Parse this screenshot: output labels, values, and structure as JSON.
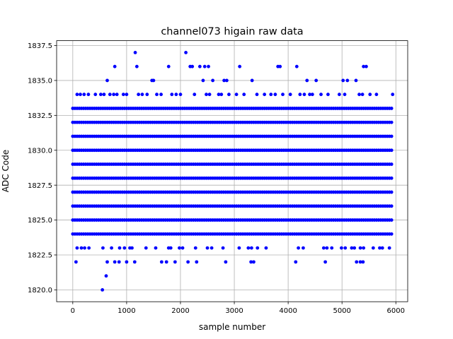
{
  "chart_data": {
    "type": "scatter",
    "title": "channel073 higain raw data",
    "xlabel": "sample number",
    "ylabel": "ADC Code",
    "xlim": [
      -300,
      6220
    ],
    "ylim": [
      1819.15,
      1837.85
    ],
    "xticks": [
      0,
      1000,
      2000,
      3000,
      4000,
      5000,
      6000
    ],
    "xtick_labels": [
      "0",
      "1000",
      "2000",
      "3000",
      "4000",
      "5000",
      "6000"
    ],
    "yticks": [
      1820.0,
      1822.5,
      1825.0,
      1827.5,
      1830.0,
      1832.5,
      1835.0,
      1837.5
    ],
    "ytick_labels": [
      "1820.0",
      "1822.5",
      "1825.0",
      "1827.5",
      "1830.0",
      "1832.5",
      "1835.0",
      "1837.5"
    ],
    "grid": true,
    "marker_color": "#0000ff",
    "series": [
      {
        "dense_levels": [
          1824,
          1825,
          1826,
          1827,
          1828,
          1829,
          1830,
          1831,
          1832,
          1833
        ],
        "dense_x_range": [
          0,
          5940
        ],
        "dense_step": 40,
        "sparse_points": [
          [
            1160,
            1837
          ],
          [
            2100,
            1837
          ],
          [
            780,
            1836
          ],
          [
            1190,
            1836
          ],
          [
            1780,
            1836
          ],
          [
            2180,
            1836
          ],
          [
            2220,
            1836
          ],
          [
            2360,
            1836
          ],
          [
            2450,
            1836
          ],
          [
            2520,
            1836
          ],
          [
            3100,
            1836
          ],
          [
            3810,
            1836
          ],
          [
            3850,
            1836
          ],
          [
            4160,
            1836
          ],
          [
            5400,
            1836
          ],
          [
            5450,
            1836
          ],
          [
            640,
            1835
          ],
          [
            1470,
            1835
          ],
          [
            1500,
            1835
          ],
          [
            2420,
            1835
          ],
          [
            2600,
            1835
          ],
          [
            2810,
            1835
          ],
          [
            2860,
            1835
          ],
          [
            3330,
            1835
          ],
          [
            4350,
            1835
          ],
          [
            4520,
            1835
          ],
          [
            5020,
            1835
          ],
          [
            5100,
            1835
          ],
          [
            5260,
            1835
          ],
          [
            80,
            1834
          ],
          [
            140,
            1834
          ],
          [
            210,
            1834
          ],
          [
            290,
            1834
          ],
          [
            420,
            1834
          ],
          [
            520,
            1834
          ],
          [
            580,
            1834
          ],
          [
            690,
            1834
          ],
          [
            760,
            1834
          ],
          [
            820,
            1834
          ],
          [
            940,
            1834
          ],
          [
            1000,
            1834
          ],
          [
            1220,
            1834
          ],
          [
            1290,
            1834
          ],
          [
            1380,
            1834
          ],
          [
            1560,
            1834
          ],
          [
            1640,
            1834
          ],
          [
            1840,
            1834
          ],
          [
            1920,
            1834
          ],
          [
            2000,
            1834
          ],
          [
            2260,
            1834
          ],
          [
            2480,
            1834
          ],
          [
            2540,
            1834
          ],
          [
            2710,
            1834
          ],
          [
            2760,
            1834
          ],
          [
            2900,
            1834
          ],
          [
            3040,
            1834
          ],
          [
            3180,
            1834
          ],
          [
            3420,
            1834
          ],
          [
            3560,
            1834
          ],
          [
            3680,
            1834
          ],
          [
            3760,
            1834
          ],
          [
            3900,
            1834
          ],
          [
            4040,
            1834
          ],
          [
            4220,
            1834
          ],
          [
            4300,
            1834
          ],
          [
            4400,
            1834
          ],
          [
            4450,
            1834
          ],
          [
            4610,
            1834
          ],
          [
            4740,
            1834
          ],
          [
            4950,
            1834
          ],
          [
            5050,
            1834
          ],
          [
            5320,
            1834
          ],
          [
            5380,
            1834
          ],
          [
            5520,
            1834
          ],
          [
            5640,
            1834
          ],
          [
            5940,
            1834
          ],
          [
            80,
            1823
          ],
          [
            160,
            1823
          ],
          [
            220,
            1823
          ],
          [
            300,
            1823
          ],
          [
            560,
            1823
          ],
          [
            720,
            1823
          ],
          [
            870,
            1823
          ],
          [
            960,
            1823
          ],
          [
            1060,
            1823
          ],
          [
            1100,
            1823
          ],
          [
            1360,
            1823
          ],
          [
            1540,
            1823
          ],
          [
            1780,
            1823
          ],
          [
            1820,
            1823
          ],
          [
            1980,
            1823
          ],
          [
            2040,
            1823
          ],
          [
            2280,
            1823
          ],
          [
            2500,
            1823
          ],
          [
            2580,
            1823
          ],
          [
            2790,
            1823
          ],
          [
            3090,
            1823
          ],
          [
            3260,
            1823
          ],
          [
            3320,
            1823
          ],
          [
            3430,
            1823
          ],
          [
            3590,
            1823
          ],
          [
            4190,
            1823
          ],
          [
            4280,
            1823
          ],
          [
            4660,
            1823
          ],
          [
            4720,
            1823
          ],
          [
            4810,
            1823
          ],
          [
            4990,
            1823
          ],
          [
            5060,
            1823
          ],
          [
            5180,
            1823
          ],
          [
            5230,
            1823
          ],
          [
            5340,
            1823
          ],
          [
            5400,
            1823
          ],
          [
            5580,
            1823
          ],
          [
            5700,
            1823
          ],
          [
            5750,
            1823
          ],
          [
            5880,
            1823
          ],
          [
            60,
            1822
          ],
          [
            640,
            1822
          ],
          [
            780,
            1822
          ],
          [
            860,
            1822
          ],
          [
            1000,
            1822
          ],
          [
            1150,
            1822
          ],
          [
            1650,
            1822
          ],
          [
            1740,
            1822
          ],
          [
            1900,
            1822
          ],
          [
            2140,
            1822
          ],
          [
            2300,
            1822
          ],
          [
            2840,
            1822
          ],
          [
            3310,
            1822
          ],
          [
            3360,
            1822
          ],
          [
            4140,
            1822
          ],
          [
            4690,
            1822
          ],
          [
            5270,
            1822
          ],
          [
            5340,
            1822
          ],
          [
            5390,
            1822
          ],
          [
            620,
            1821
          ],
          [
            550,
            1820
          ]
        ]
      }
    ]
  }
}
